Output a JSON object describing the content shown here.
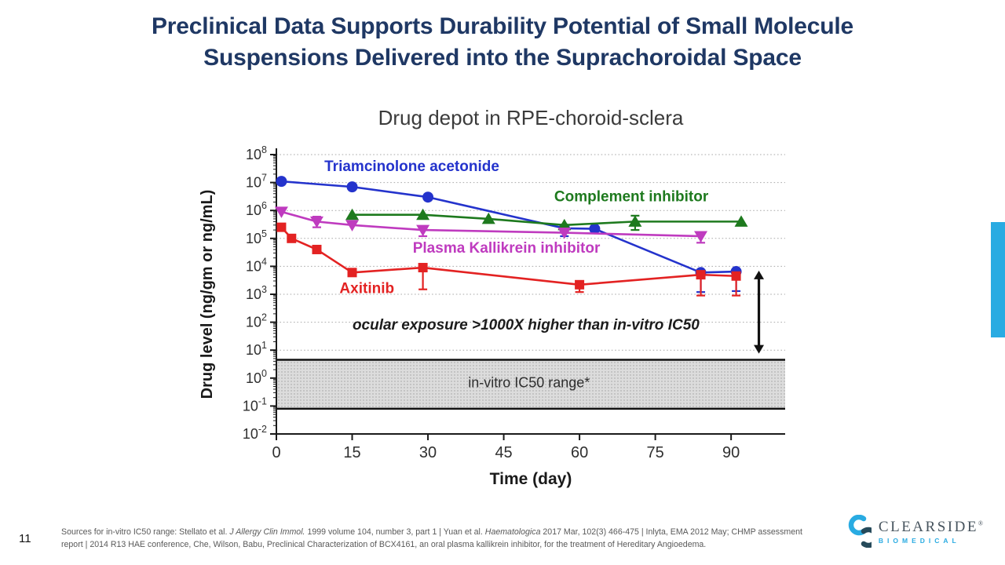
{
  "slide": {
    "title_line1": "Preclinical Data Supports Durability Potential of Small Molecule",
    "title_line2": "Suspensions Delivered into the Suprachoroidal Space",
    "title_color": "#1F3864",
    "accent_color": "#29ABE2",
    "page_number": "11",
    "footer": {
      "line1_segments": [
        {
          "text": "Sources for in-vitro IC50 range: Stellato et al. ",
          "italic": false
        },
        {
          "text": "J Allergy Clin Immol.",
          "italic": true
        },
        {
          "text": " 1999 volume 104, number 3, part 1 | Yuan et al. ",
          "italic": false
        },
        {
          "text": "Haematologica",
          "italic": true
        },
        {
          "text": " 2017 Mar, 102(3) 466-475 | Inlyta, EMA 2012 May; CHMP assessment",
          "italic": false
        }
      ],
      "line2": "report | 2014 R13 HAE conference, Che, Wilson, Babu, Preclinical Characterization of BCX4161, an oral plasma kallikrein inhibitor, for the treatment of Hereditary Angioedema."
    },
    "logo": {
      "name": "CLEARSIDE",
      "reg": "®",
      "sub": "BIOMEDICAL",
      "name_color": "#47545E",
      "sub_color": "#29ABE2",
      "icon_top_color": "#29ABE2",
      "icon_bottom_color": "#264A5A"
    }
  },
  "chart_data": {
    "type": "line",
    "title": "Drug depot in RPE-choroid-sclera",
    "xlabel": "Time (day)",
    "ylabel": "Drug level (ng/gm or ng/mL)",
    "x_ticks": [
      0,
      15,
      30,
      45,
      60,
      75,
      90
    ],
    "xlim": [
      0,
      100.7
    ],
    "ylim_log": [
      -2,
      8
    ],
    "y_tick_exponents": [
      8,
      7,
      6,
      5,
      4,
      3,
      2,
      1,
      0,
      -1,
      -2
    ],
    "grid": "dotted horizontal lines at each decade",
    "legend_position": "inline-labels",
    "series": [
      {
        "name": "Triamcinolone acetonide",
        "color": "#2433CC",
        "marker": "circle",
        "points": [
          {
            "day": 1,
            "value": 11000000
          },
          {
            "day": 15,
            "value": 7000000
          },
          {
            "day": 30,
            "value": 3000000
          },
          {
            "day": 57,
            "value": 230000,
            "err_low": 120000
          },
          {
            "day": 63,
            "value": 220000
          },
          {
            "day": 84,
            "value": 6000,
            "err_low": 1200
          },
          {
            "day": 91,
            "value": 6500,
            "err_low": 1300
          }
        ]
      },
      {
        "name": "Complement inhibitor",
        "color": "#1E7A1E",
        "marker": "triangle-up",
        "points": [
          {
            "day": 15,
            "value": 700000
          },
          {
            "day": 29,
            "value": 700000
          },
          {
            "day": 42,
            "value": 500000
          },
          {
            "day": 57,
            "value": 300000
          },
          {
            "day": 71,
            "value": 400000,
            "err_low": 200000,
            "err_high": 650000
          },
          {
            "day": 92,
            "value": 400000
          }
        ]
      },
      {
        "name": "Plasma Kallikrein inhibitor",
        "color": "#BF3BBF",
        "marker": "triangle-down",
        "points": [
          {
            "day": 1,
            "value": 900000
          },
          {
            "day": 8,
            "value": 400000,
            "err_low": 250000,
            "err_high": 600000
          },
          {
            "day": 15,
            "value": 300000
          },
          {
            "day": 29,
            "value": 200000,
            "err_low": 120000
          },
          {
            "day": 57,
            "value": 160000
          },
          {
            "day": 84,
            "value": 120000,
            "err_low": 70000
          }
        ]
      },
      {
        "name": "Axitinib",
        "color": "#E32222",
        "marker": "square",
        "points": [
          {
            "day": 1,
            "value": 250000
          },
          {
            "day": 3,
            "value": 100000
          },
          {
            "day": 8,
            "value": 40000
          },
          {
            "day": 15,
            "value": 6000
          },
          {
            "day": 29,
            "value": 9000,
            "err_low": 1500
          },
          {
            "day": 60,
            "value": 2200,
            "err_low": 1200
          },
          {
            "day": 84,
            "value": 5000,
            "err_low": 900
          },
          {
            "day": 91,
            "value": 4500,
            "err_low": 900
          }
        ]
      }
    ],
    "series_labels": [
      {
        "text": "Triamcinolone acetonide",
        "color": "#2433CC",
        "day": 9.5,
        "value": 26000000,
        "anchor": "start",
        "bold": true,
        "italic": false,
        "size": 19
      },
      {
        "text": "Complement inhibitor",
        "color": "#1E7A1E",
        "day": 55,
        "value": 2100000,
        "anchor": "start",
        "bold": true,
        "italic": false,
        "size": 19
      },
      {
        "text": "Plasma Kallikrein inhibitor",
        "color": "#BF3BBF",
        "day": 27,
        "value": 31000,
        "anchor": "start",
        "bold": true,
        "italic": false,
        "size": 19
      },
      {
        "text": "Axitinib",
        "color": "#E32222",
        "day": 12.5,
        "value": 1100,
        "anchor": "start",
        "bold": true,
        "italic": false,
        "size": 19
      }
    ],
    "annotation": {
      "text": "ocular exposure >1000X higher than in-vitro IC50",
      "day": 49.4,
      "value": 55,
      "bold": true,
      "italic": true,
      "size": 19,
      "color": "#1c1c1c",
      "anchor": "middle"
    },
    "band": {
      "label": "in-vitro IC50 range*",
      "from": 0.08,
      "to": 4.5,
      "fill": "#DCDCDC",
      "border_color": "#111111",
      "label_day": 50,
      "label_value": 0.7,
      "label_size": 18,
      "label_color": "#2f2f2f"
    },
    "arrow": {
      "day": 95.5,
      "from_value": 7000,
      "to_value": 7.5,
      "color": "#111111"
    },
    "axis_color": "#1a1a1a",
    "tick_label_color": "#2f2f2f",
    "title_color": "#3b3b3b",
    "grid_color": "#a9a9a9"
  }
}
